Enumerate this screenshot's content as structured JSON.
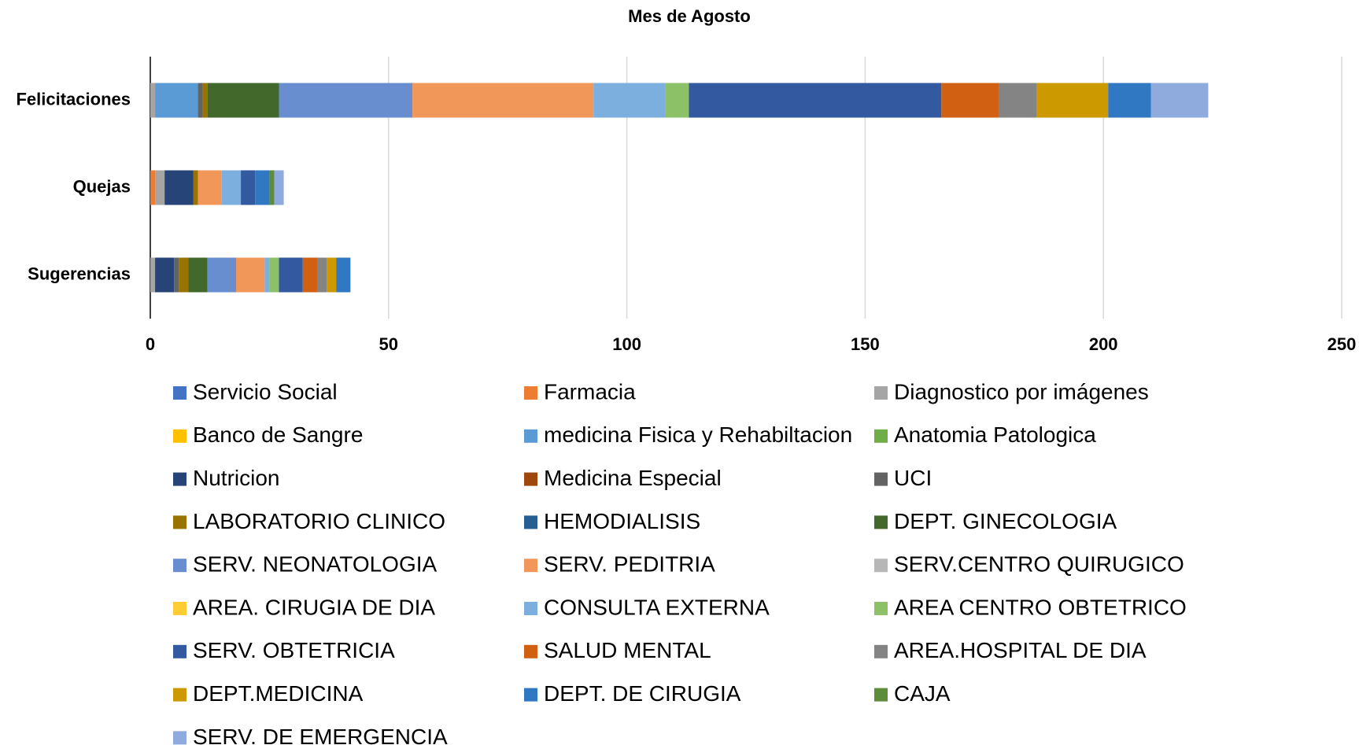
{
  "chart_data": {
    "type": "stacked-barh",
    "title": "Mes de Agosto",
    "categories": [
      "Felicitaciones",
      "Quejas",
      "Sugerencias"
    ],
    "series": [
      {
        "name": "Servicio Social",
        "color": "#4472c4",
        "values": [
          0,
          0,
          0
        ]
      },
      {
        "name": "Farmacia",
        "color": "#ed7d31",
        "values": [
          0,
          1,
          0
        ]
      },
      {
        "name": "Diagnostico por imágenes",
        "color": "#a5a5a5",
        "values": [
          1,
          2,
          1
        ]
      },
      {
        "name": "Banco de Sangre",
        "color": "#ffc000",
        "values": [
          0,
          0,
          0
        ]
      },
      {
        "name": "medicina Fisica y Rehabiltacion",
        "color": "#5b9bd5",
        "values": [
          9,
          0,
          0
        ]
      },
      {
        "name": "Anatomia Patologica",
        "color": "#70ad47",
        "values": [
          0,
          0,
          0
        ]
      },
      {
        "name": "Nutricion",
        "color": "#264478",
        "values": [
          0,
          6,
          4
        ]
      },
      {
        "name": "Medicina Especial",
        "color": "#9e480e",
        "values": [
          0,
          0,
          0
        ]
      },
      {
        "name": "UCI",
        "color": "#636363",
        "values": [
          1,
          0,
          1
        ]
      },
      {
        "name": "LABORATORIO CLINICO",
        "color": "#997300",
        "values": [
          1,
          1,
          2
        ]
      },
      {
        "name": "HEMODIALISIS",
        "color": "#255e91",
        "values": [
          0,
          0,
          0
        ]
      },
      {
        "name": "DEPT. GINECOLOGIA",
        "color": "#43682b",
        "values": [
          15,
          0,
          4
        ]
      },
      {
        "name": "SERV. NEONATOLOGIA",
        "color": "#698ed0",
        "values": [
          28,
          0,
          6
        ]
      },
      {
        "name": "SERV. PEDITRIA",
        "color": "#f1975a",
        "values": [
          38,
          5,
          6
        ]
      },
      {
        "name": "SERV.CENTRO QUIRUGICO",
        "color": "#b7b7b7",
        "values": [
          0,
          0,
          0
        ]
      },
      {
        "name": "AREA. CIRUGIA DE DIA",
        "color": "#ffcd33",
        "values": [
          0,
          0,
          0
        ]
      },
      {
        "name": "CONSULTA EXTERNA",
        "color": "#7cafdd",
        "values": [
          15,
          4,
          1
        ]
      },
      {
        "name": "AREA CENTRO OBTETRICO",
        "color": "#8cc168",
        "values": [
          5,
          0,
          2
        ]
      },
      {
        "name": "SERV. OBTETRICIA",
        "color": "#335aa1",
        "values": [
          53,
          3,
          5
        ]
      },
      {
        "name": "SALUD MENTAL",
        "color": "#d26012",
        "values": [
          12,
          0,
          3
        ]
      },
      {
        "name": "AREA.HOSPITAL DE DIA",
        "color": "#848484",
        "values": [
          8,
          0,
          2
        ]
      },
      {
        "name": "DEPT.MEDICINA",
        "color": "#cc9a00",
        "values": [
          15,
          0,
          2
        ]
      },
      {
        "name": "DEPT. DE CIRUGIA",
        "color": "#3078c2",
        "values": [
          9,
          3,
          3
        ]
      },
      {
        "name": "CAJA",
        "color": "#5d8c3a",
        "values": [
          0,
          1,
          0
        ]
      },
      {
        "name": "SERV. DE EMERGENCIA",
        "color": "#8faadc",
        "values": [
          12,
          2,
          0
        ]
      }
    ],
    "xlim": [
      0,
      250
    ],
    "xticks": [
      0,
      50,
      100,
      150,
      200,
      250
    ],
    "grid": true,
    "legend": "bottom"
  }
}
